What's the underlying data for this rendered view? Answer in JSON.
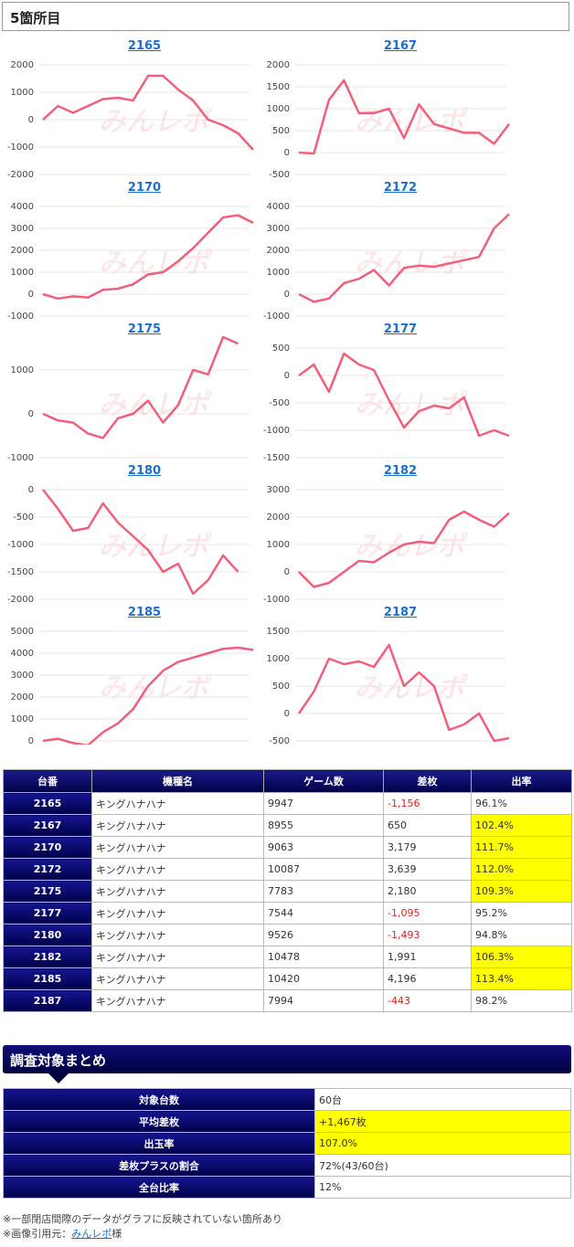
{
  "section_title": "5箇所目",
  "watermark": "みんレポ",
  "charts": [
    {
      "id": "2165",
      "ticks": [
        "2000",
        "1000",
        "0",
        "-1000",
        "-2000"
      ],
      "ylim": [
        -2000,
        2000
      ],
      "values": [
        0,
        500,
        250,
        500,
        750,
        800,
        700,
        1600,
        1600,
        1100,
        700,
        0,
        -200,
        -500,
        -1100
      ]
    },
    {
      "id": "2167",
      "ticks": [
        "2000",
        "1500",
        "1000",
        "500",
        "0",
        "-500"
      ],
      "ylim": [
        -500,
        2000
      ],
      "values": [
        0,
        -20,
        1200,
        1650,
        900,
        900,
        1000,
        330,
        1100,
        650,
        550,
        450,
        450,
        200,
        650
      ]
    },
    {
      "id": "2170",
      "ticks": [
        "4000",
        "3000",
        "2000",
        "1000",
        "0",
        "-1000"
      ],
      "ylim": [
        -1000,
        4000
      ],
      "values": [
        0,
        -200,
        -100,
        -150,
        200,
        250,
        450,
        900,
        1000,
        1500,
        2100,
        2800,
        3500,
        3600,
        3250
      ]
    },
    {
      "id": "2172",
      "ticks": [
        "4000",
        "3000",
        "2000",
        "1000",
        "0",
        "-1000"
      ],
      "ylim": [
        -1000,
        4000
      ],
      "values": [
        0,
        -350,
        -200,
        500,
        700,
        1100,
        400,
        1200,
        1300,
        1250,
        1400,
        1550,
        1700,
        3000,
        3650
      ]
    },
    {
      "id": "2175",
      "ticks": [
        "1000",
        "0",
        "-1000"
      ],
      "ylim": [
        -1000,
        1500
      ],
      "values": [
        0,
        -150,
        -200,
        -450,
        -550,
        -100,
        0,
        300,
        -200,
        200,
        1000,
        900,
        1750,
        1600
      ]
    },
    {
      "id": "2177",
      "ticks": [
        "500",
        "0",
        "-500",
        "-1000",
        "-1500"
      ],
      "ylim": [
        -1500,
        500
      ],
      "values": [
        0,
        200,
        -300,
        400,
        200,
        100,
        -450,
        -950,
        -650,
        -550,
        -600,
        -400,
        -1100,
        -1000,
        -1100
      ]
    },
    {
      "id": "2180",
      "ticks": [
        "0",
        "-500",
        "-1000",
        "-1500",
        "-2000"
      ],
      "ylim": [
        -2000,
        0
      ],
      "values": [
        0,
        -350,
        -750,
        -700,
        -250,
        -600,
        -850,
        -1100,
        -1500,
        -1350,
        -1900,
        -1650,
        -1200,
        -1500
      ]
    },
    {
      "id": "2182",
      "ticks": [
        "3000",
        "2000",
        "1000",
        "0",
        "-1000"
      ],
      "ylim": [
        -1000,
        3000
      ],
      "values": [
        0,
        -550,
        -400,
        0,
        400,
        350,
        700,
        1000,
        1100,
        1050,
        1900,
        2200,
        1900,
        1650,
        2150
      ]
    },
    {
      "id": "2185",
      "ticks": [
        "5000",
        "4000",
        "3000",
        "2000",
        "1000",
        "0"
      ],
      "ylim": [
        0,
        5000
      ],
      "values": [
        0,
        100,
        -100,
        -200,
        400,
        800,
        1450,
        2500,
        3200,
        3600,
        3800,
        4000,
        4200,
        4250,
        4150
      ]
    },
    {
      "id": "2187",
      "ticks": [
        "1500",
        "1000",
        "500",
        "0",
        "-500"
      ],
      "ylim": [
        -500,
        1500
      ],
      "values": [
        0,
        400,
        1000,
        900,
        950,
        850,
        1250,
        500,
        750,
        500,
        -300,
        -200,
        0,
        -500,
        -450
      ]
    }
  ],
  "table": {
    "headers": [
      "台番",
      "機種名",
      "ゲーム数",
      "差枚",
      "出率"
    ],
    "rows": [
      [
        "2165",
        "キングハナハナ",
        "9947",
        "-1,156",
        "96.1%"
      ],
      [
        "2167",
        "キングハナハナ",
        "8955",
        "650",
        "102.4%"
      ],
      [
        "2170",
        "キングハナハナ",
        "9063",
        "3,179",
        "111.7%"
      ],
      [
        "2172",
        "キングハナハナ",
        "10087",
        "3,639",
        "112.0%"
      ],
      [
        "2175",
        "キングハナハナ",
        "7783",
        "2,180",
        "109.3%"
      ],
      [
        "2177",
        "キングハナハナ",
        "7544",
        "-1,095",
        "95.2%"
      ],
      [
        "2180",
        "キングハナハナ",
        "9526",
        "-1,493",
        "94.8%"
      ],
      [
        "2182",
        "キングハナハナ",
        "10478",
        "1,991",
        "106.3%"
      ],
      [
        "2185",
        "キングハナハナ",
        "10420",
        "4,196",
        "113.4%"
      ],
      [
        "2187",
        "キングハナハナ",
        "7994",
        "-443",
        "98.2%"
      ]
    ],
    "highlight_color": "#ffff00",
    "negative_color": "#e02020"
  },
  "summary": {
    "title": "調査対象まとめ",
    "rows": [
      {
        "label": "対象台数",
        "value": "60台",
        "highlight": false
      },
      {
        "label": "平均差枚",
        "value": "+1,467枚",
        "highlight": true
      },
      {
        "label": "出玉率",
        "value": "107.0%",
        "highlight": true
      },
      {
        "label": "差枚プラスの割合",
        "value": "72%(43/60台)",
        "highlight": false
      },
      {
        "label": "全台比率",
        "value": "12%",
        "highlight": false
      }
    ]
  },
  "notes": {
    "line1": "※一部閉店間際のデータがグラフに反映されていない箇所あり",
    "line2_prefix": "※画像引用元：",
    "line2_link": "みんレポ",
    "line2_suffix": "様"
  },
  "line_color": "#f0607a"
}
